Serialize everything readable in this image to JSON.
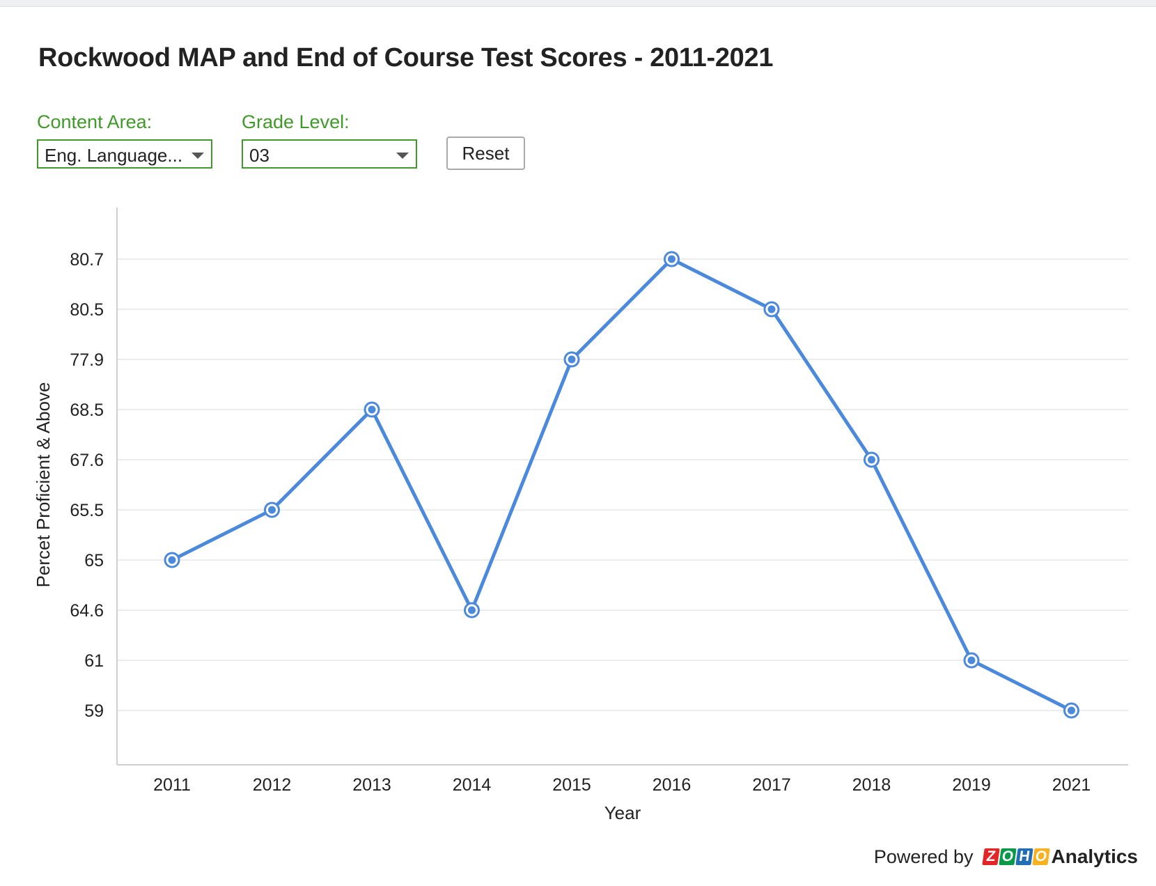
{
  "page": {
    "title": "Rockwood MAP and End of Course Test Scores - 2011-2021"
  },
  "filters": {
    "content_area": {
      "label": "Content Area:",
      "value": "Eng. Language..."
    },
    "grade_level": {
      "label": "Grade Level:",
      "value": "03"
    },
    "reset_label": "Reset"
  },
  "footer": {
    "powered_by": "Powered by",
    "logo_letters": [
      "Z",
      "O",
      "H",
      "O"
    ],
    "logo_colors": [
      "#e42527",
      "#089949",
      "#226db4",
      "#f9b21d"
    ],
    "product": "Analytics"
  },
  "colors": {
    "accent_green": "#3f9a2a",
    "series_line": "#4a89dc"
  },
  "chart_data": {
    "type": "line",
    "xlabel": "Year",
    "ylabel": "Percet Proficient & Above",
    "categories": [
      "2011",
      "2012",
      "2013",
      "2014",
      "2015",
      "2016",
      "2017",
      "2018",
      "2019",
      "2021"
    ],
    "y_tick_labels": [
      "59",
      "61",
      "64.6",
      "65",
      "65.5",
      "67.6",
      "68.5",
      "77.9",
      "80.5",
      "80.7"
    ],
    "series": [
      {
        "values": [
          65,
          65.5,
          68.5,
          64.6,
          77.9,
          80.7,
          80.5,
          67.6,
          61,
          59
        ]
      }
    ],
    "y_scale": "categorical (evenly spaced distinct values)",
    "grid": true,
    "legend": "none"
  }
}
